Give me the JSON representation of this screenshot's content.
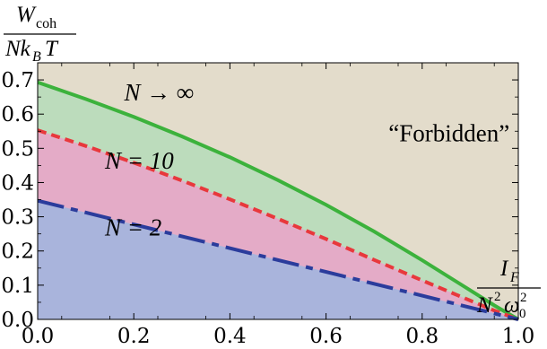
{
  "chart_data": {
    "type": "area",
    "title": "",
    "x": {
      "range": [
        0.0,
        1.0
      ],
      "ticks": [
        0.0,
        0.2,
        0.4,
        0.6,
        0.8,
        1.0
      ],
      "tick_labels": [
        "0.0",
        "0.2",
        "0.4",
        "0.6",
        "0.8",
        "1.0"
      ],
      "label": {
        "numerator": "I_F",
        "denominator": "N^2 ω_0^2"
      }
    },
    "y": {
      "range": [
        0.0,
        0.75
      ],
      "ticks": [
        0.0,
        0.1,
        0.2,
        0.3,
        0.4,
        0.5,
        0.6,
        0.7
      ],
      "tick_labels": [
        "0.0",
        "0.1",
        "0.2",
        "0.3",
        "0.4",
        "0.5",
        "0.6",
        "0.7"
      ],
      "label": {
        "numerator": "W_coh",
        "denominator": "N k_B T"
      }
    },
    "grid": false,
    "background_color": "#e3dccb",
    "series": [
      {
        "name": "N → ∞",
        "style": "solid",
        "line_color": "#3cb23c",
        "fill_color": "#bcdcbc",
        "x": [
          0.0,
          0.1,
          0.2,
          0.3,
          0.4,
          0.5,
          0.6,
          0.7,
          0.8,
          0.9,
          0.95,
          1.0
        ],
        "y": [
          0.693,
          0.644,
          0.592,
          0.535,
          0.474,
          0.407,
          0.335,
          0.257,
          0.173,
          0.085,
          0.041,
          0.0
        ]
      },
      {
        "name": "N = 10",
        "style": "dashed",
        "line_color": "#e8383c",
        "fill_color": "#e4abc7",
        "x": [
          0.0,
          0.1,
          0.2,
          0.3,
          0.4,
          0.5,
          0.6,
          0.7,
          0.8,
          0.9,
          0.95,
          1.0
        ],
        "y": [
          0.553,
          0.507,
          0.458,
          0.406,
          0.351,
          0.294,
          0.235,
          0.174,
          0.114,
          0.055,
          0.026,
          0.0
        ]
      },
      {
        "name": "N = 2",
        "style": "dash-dot",
        "line_color": "#2b3c9c",
        "fill_color": "#a9b4dc",
        "x": [
          0.0,
          1.0
        ],
        "y": [
          0.347,
          0.0
        ]
      }
    ],
    "annotations": [
      {
        "text": "N → ∞",
        "x": 0.18,
        "y": 0.64
      },
      {
        "text": "N = 10",
        "x": 0.14,
        "y": 0.44
      },
      {
        "text": "N = 2",
        "x": 0.14,
        "y": 0.245
      },
      {
        "text": "“Forbidden”",
        "x": 0.73,
        "y": 0.52
      }
    ]
  }
}
